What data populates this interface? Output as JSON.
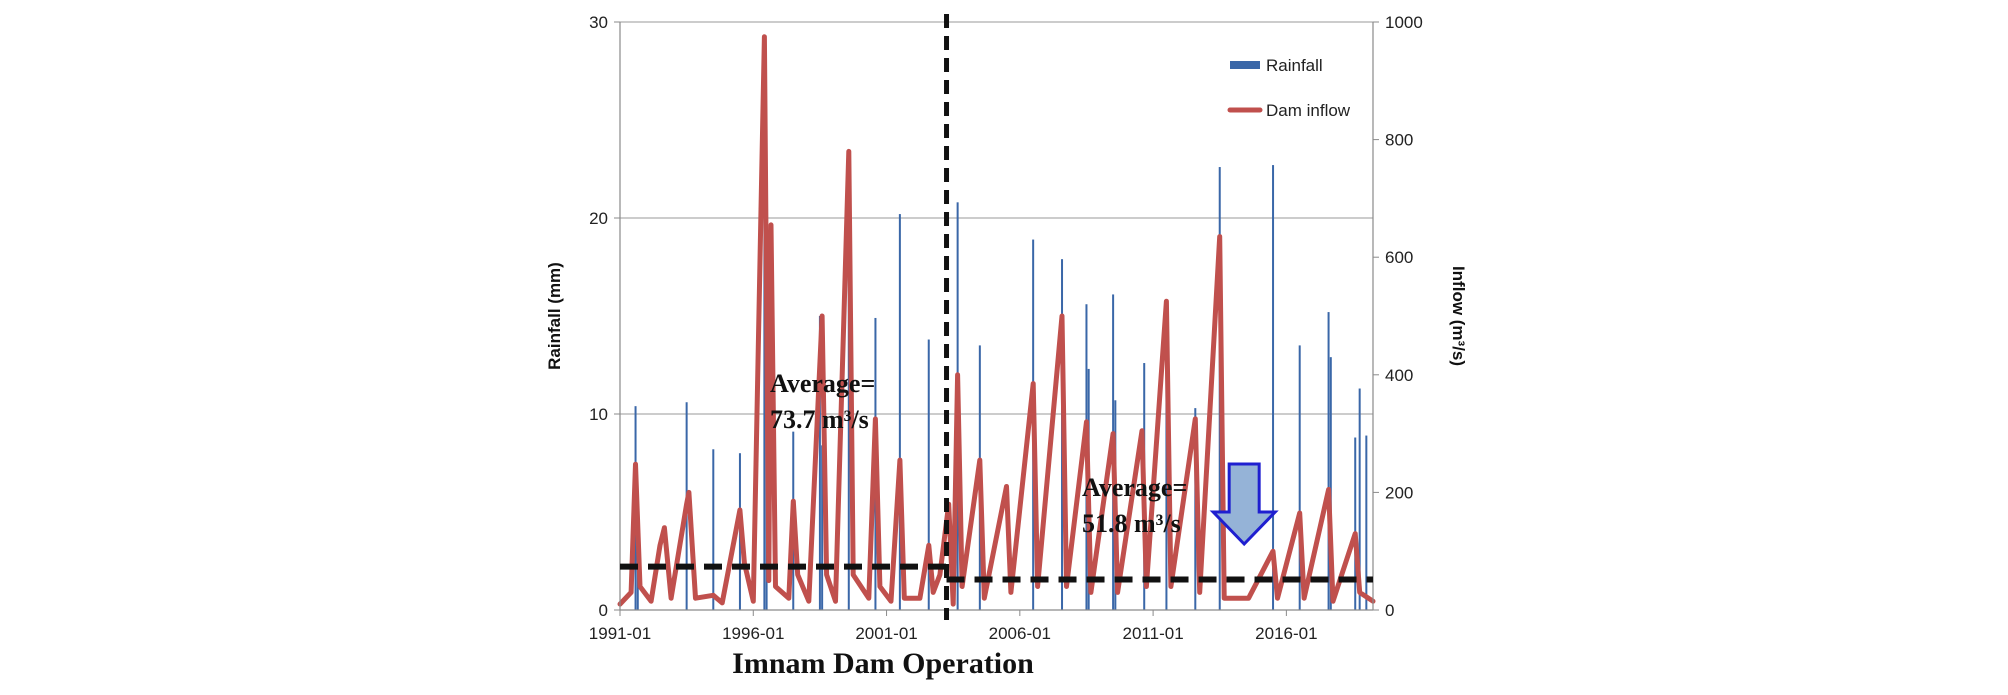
{
  "chart_data": {
    "type": "bar+line",
    "caption": "Imnam Dam Operation",
    "xlabel": "",
    "x_range": [
      "1991-01",
      "2019-04"
    ],
    "x_ticks": [
      "1991-01",
      "1996-01",
      "2001-01",
      "2006-01",
      "2011-01",
      "2016-01"
    ],
    "y_left": {
      "label": "Rainfall (mm)",
      "lim": [
        0,
        30
      ],
      "ticks": [
        "0",
        "10",
        "20",
        "30"
      ]
    },
    "y_right": {
      "label": "Inflow (m³/s)",
      "lim": [
        0,
        1000
      ],
      "ticks": [
        "0",
        "200",
        "400",
        "600",
        "800",
        "1000"
      ]
    },
    "grid": true,
    "legend": {
      "position": "top-right",
      "entries": [
        "Rainfall",
        "Dam inflow"
      ]
    },
    "colors": {
      "rainfall": "#3a67a8",
      "inflow": "#c0504d",
      "average_line": "#111111",
      "arrow_fill": "#95b3d7",
      "arrow_stroke": "#1f1fd0"
    },
    "series": [
      {
        "name": "Rainfall",
        "axis": "left",
        "kind": "bar",
        "points": [
          [
            "1991-08",
            10.4
          ],
          [
            "1991-09",
            5.0
          ],
          [
            "1993-07",
            10.6
          ],
          [
            "1994-07",
            8.2
          ],
          [
            "1995-07",
            8.0
          ],
          [
            "1996-06",
            29.0
          ],
          [
            "1996-07",
            18.6
          ],
          [
            "1997-07",
            9.1
          ],
          [
            "1998-07",
            15.0
          ],
          [
            "1998-08",
            8.4
          ],
          [
            "1999-08",
            22.7
          ],
          [
            "2000-08",
            14.9
          ],
          [
            "2001-07",
            20.2
          ],
          [
            "2002-08",
            13.8
          ],
          [
            "2003-09",
            20.8
          ],
          [
            "2004-07",
            13.5
          ],
          [
            "2006-07",
            18.9
          ],
          [
            "2007-08",
            17.9
          ],
          [
            "2008-07",
            15.6
          ],
          [
            "2008-08",
            12.3
          ],
          [
            "2009-07",
            16.1
          ],
          [
            "2009-08",
            10.7
          ],
          [
            "2010-09",
            12.6
          ],
          [
            "2011-07",
            15.7
          ],
          [
            "2012-08",
            10.3
          ],
          [
            "2013-07",
            22.6
          ],
          [
            "2015-07",
            22.7
          ],
          [
            "2016-07",
            13.5
          ],
          [
            "2017-08",
            15.2
          ],
          [
            "2017-09",
            12.9
          ],
          [
            "2018-08",
            8.8
          ],
          [
            "2018-10",
            11.3
          ],
          [
            "2019-01",
            8.9
          ]
        ]
      },
      {
        "name": "Dam inflow",
        "axis": "right",
        "kind": "line",
        "points": [
          [
            "1991-01",
            10
          ],
          [
            "1991-06",
            30
          ],
          [
            "1991-08",
            248
          ],
          [
            "1991-10",
            40
          ],
          [
            "1992-03",
            15
          ],
          [
            "1992-07",
            110
          ],
          [
            "1992-09",
            140
          ],
          [
            "1992-12",
            20
          ],
          [
            "1993-07",
            180
          ],
          [
            "1993-08",
            200
          ],
          [
            "1993-11",
            20
          ],
          [
            "1994-07",
            25
          ],
          [
            "1994-11",
            12
          ],
          [
            "1995-07",
            170
          ],
          [
            "1995-09",
            80
          ],
          [
            "1996-01",
            15
          ],
          [
            "1996-06",
            975
          ],
          [
            "1996-08",
            50
          ],
          [
            "1996-09",
            655
          ],
          [
            "1996-11",
            40
          ],
          [
            "1997-05",
            20
          ],
          [
            "1997-07",
            185
          ],
          [
            "1997-09",
            60
          ],
          [
            "1998-02",
            15
          ],
          [
            "1998-08",
            500
          ],
          [
            "1998-10",
            60
          ],
          [
            "1999-02",
            15
          ],
          [
            "1999-08",
            780
          ],
          [
            "1999-10",
            60
          ],
          [
            "2000-05",
            20
          ],
          [
            "2000-08",
            325
          ],
          [
            "2000-10",
            40
          ],
          [
            "2001-03",
            15
          ],
          [
            "2001-07",
            255
          ],
          [
            "2001-09",
            20
          ],
          [
            "2002-04",
            20
          ],
          [
            "2002-08",
            110
          ],
          [
            "2002-10",
            30
          ],
          [
            "2003-01",
            60
          ],
          [
            "2003-05",
            180
          ],
          [
            "2003-07",
            10
          ],
          [
            "2003-09",
            400
          ],
          [
            "2003-11",
            40
          ],
          [
            "2004-07",
            255
          ],
          [
            "2004-09",
            20
          ],
          [
            "2005-07",
            210
          ],
          [
            "2005-09",
            30
          ],
          [
            "2006-07",
            385
          ],
          [
            "2006-09",
            40
          ],
          [
            "2007-08",
            500
          ],
          [
            "2007-10",
            40
          ],
          [
            "2008-07",
            320
          ],
          [
            "2008-09",
            30
          ],
          [
            "2009-07",
            300
          ],
          [
            "2009-09",
            30
          ],
          [
            "2010-08",
            305
          ],
          [
            "2010-10",
            40
          ],
          [
            "2011-07",
            525
          ],
          [
            "2011-09",
            40
          ],
          [
            "2012-08",
            325
          ],
          [
            "2012-10",
            30
          ],
          [
            "2013-07",
            635
          ],
          [
            "2013-09",
            20
          ],
          [
            "2014-08",
            20
          ],
          [
            "2015-07",
            100
          ],
          [
            "2015-09",
            20
          ],
          [
            "2016-07",
            165
          ],
          [
            "2016-09",
            20
          ],
          [
            "2017-08",
            205
          ],
          [
            "2017-10",
            15
          ],
          [
            "2018-08",
            130
          ],
          [
            "2018-10",
            30
          ],
          [
            "2019-04",
            15
          ]
        ]
      }
    ],
    "annotations": [
      {
        "text_line1": "Average=",
        "text_line2": "73.7 m³/s",
        "period": [
          "1991-01",
          "2003-04"
        ],
        "value": 73.7
      },
      {
        "text_line1": "Average=",
        "text_line2": "51.8 m³/s",
        "period": [
          "2003-04",
          "2019-04"
        ],
        "value": 51.8
      },
      {
        "marker": "operation-start",
        "at": "2003-04"
      },
      {
        "marker": "down-arrow",
        "at": "2014-06"
      }
    ]
  }
}
